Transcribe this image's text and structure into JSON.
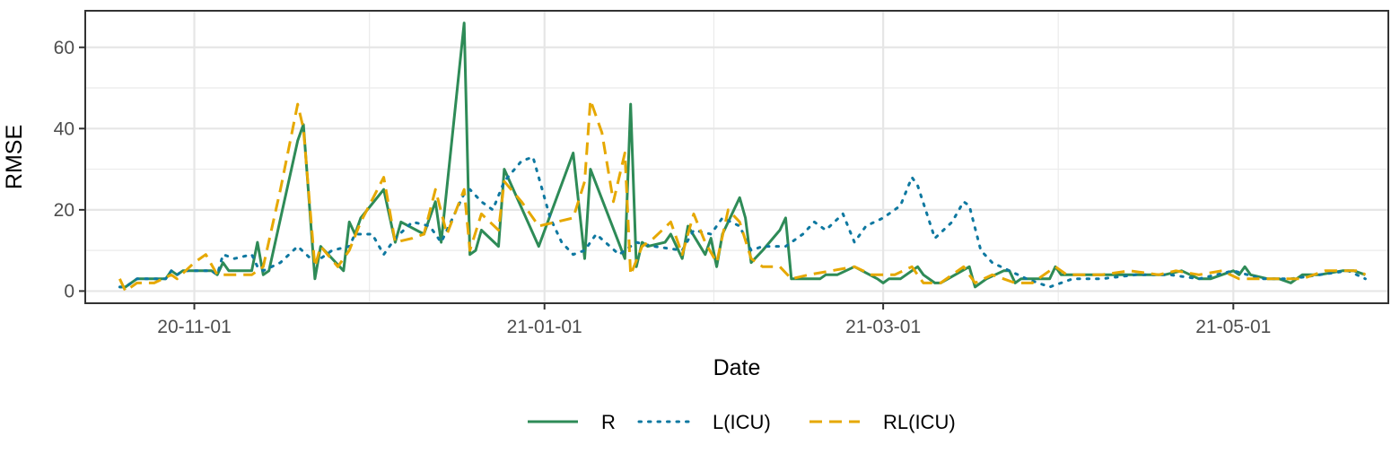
{
  "chart_data": {
    "type": "line",
    "title": "",
    "xlabel": "Date",
    "ylabel": "RMSE",
    "x_tick_labels": [
      "20-11-01",
      "21-01-01",
      "21-03-01",
      "21-05-01"
    ],
    "x_ticks": [
      "2020-11-01",
      "2021-01-01",
      "2021-03-01",
      "2021-05-01"
    ],
    "y_ticks": [
      0,
      20,
      40,
      60
    ],
    "y_tick_labels": [
      "0",
      "20",
      "40",
      "60"
    ],
    "xlim": [
      "2020-10-13",
      "2021-05-28"
    ],
    "ylim": [
      -3,
      69
    ],
    "grid": true,
    "legend_position": "bottom",
    "series": [
      {
        "name": "R",
        "color": "#2e8b57",
        "dash": "solid",
        "points": [
          [
            "2020-10-19",
            1
          ],
          [
            "2020-10-20",
            1
          ],
          [
            "2020-10-22",
            3
          ],
          [
            "2020-10-25",
            3
          ],
          [
            "2020-10-27",
            3
          ],
          [
            "2020-10-28",
            5
          ],
          [
            "2020-10-29",
            4
          ],
          [
            "2020-10-30",
            5
          ],
          [
            "2020-11-02",
            5
          ],
          [
            "2020-11-04",
            5
          ],
          [
            "2020-11-05",
            4
          ],
          [
            "2020-11-06",
            7
          ],
          [
            "2020-11-07",
            5
          ],
          [
            "2020-11-11",
            5
          ],
          [
            "2020-11-12",
            12
          ],
          [
            "2020-11-13",
            4
          ],
          [
            "2020-11-14",
            5
          ],
          [
            "2020-11-19",
            37
          ],
          [
            "2020-11-20",
            41
          ],
          [
            "2020-11-22",
            3
          ],
          [
            "2020-11-23",
            11
          ],
          [
            "2020-11-27",
            5
          ],
          [
            "2020-11-28",
            17
          ],
          [
            "2020-11-29",
            14
          ],
          [
            "2020-11-30",
            18
          ],
          [
            "2020-12-04",
            25
          ],
          [
            "2020-12-06",
            12
          ],
          [
            "2020-12-07",
            17
          ],
          [
            "2020-12-11",
            14
          ],
          [
            "2020-12-13",
            22
          ],
          [
            "2020-12-14",
            12
          ],
          [
            "2020-12-18",
            66
          ],
          [
            "2020-12-19",
            9
          ],
          [
            "2020-12-20",
            10
          ],
          [
            "2020-12-21",
            15
          ],
          [
            "2020-12-24",
            11
          ],
          [
            "2020-12-25",
            30
          ],
          [
            "2020-12-31",
            11
          ],
          [
            "2021-01-06",
            34
          ],
          [
            "2021-01-08",
            8
          ],
          [
            "2021-01-09",
            30
          ],
          [
            "2021-01-15",
            8
          ],
          [
            "2021-01-16",
            46
          ],
          [
            "2021-01-17",
            6
          ],
          [
            "2021-01-18",
            12
          ],
          [
            "2021-01-19",
            11
          ],
          [
            "2021-01-22",
            12
          ],
          [
            "2021-01-23",
            14
          ],
          [
            "2021-01-25",
            8
          ],
          [
            "2021-01-26",
            16
          ],
          [
            "2021-01-29",
            9
          ],
          [
            "2021-01-30",
            13
          ],
          [
            "2021-01-31",
            6
          ],
          [
            "2021-02-01",
            14
          ],
          [
            "2021-02-03",
            20
          ],
          [
            "2021-02-04",
            23
          ],
          [
            "2021-02-05",
            18
          ],
          [
            "2021-02-06",
            7
          ],
          [
            "2021-02-08",
            10
          ],
          [
            "2021-02-11",
            15
          ],
          [
            "2021-02-12",
            18
          ],
          [
            "2021-02-13",
            3
          ],
          [
            "2021-02-15",
            3
          ],
          [
            "2021-02-18",
            3
          ],
          [
            "2021-02-19",
            4
          ],
          [
            "2021-02-21",
            4
          ],
          [
            "2021-02-24",
            6
          ],
          [
            "2021-02-28",
            3
          ],
          [
            "2021-03-01",
            2
          ],
          [
            "2021-03-02",
            3
          ],
          [
            "2021-03-04",
            3
          ],
          [
            "2021-03-07",
            6
          ],
          [
            "2021-03-08",
            4
          ],
          [
            "2021-03-10",
            2
          ],
          [
            "2021-03-11",
            2
          ],
          [
            "2021-03-16",
            6
          ],
          [
            "2021-03-17",
            1
          ],
          [
            "2021-03-19",
            3
          ],
          [
            "2021-03-22",
            5
          ],
          [
            "2021-03-23",
            5
          ],
          [
            "2021-03-24",
            2
          ],
          [
            "2021-03-25",
            3
          ],
          [
            "2021-03-27",
            3
          ],
          [
            "2021-03-30",
            3
          ],
          [
            "2021-03-31",
            6
          ],
          [
            "2021-04-01",
            4
          ],
          [
            "2021-04-07",
            4
          ],
          [
            "2021-04-11",
            4
          ],
          [
            "2021-04-16",
            4
          ],
          [
            "2021-04-19",
            4
          ],
          [
            "2021-04-22",
            5
          ],
          [
            "2021-04-25",
            3
          ],
          [
            "2021-04-27",
            3
          ],
          [
            "2021-05-01",
            5
          ],
          [
            "2021-05-02",
            4
          ],
          [
            "2021-05-03",
            6
          ],
          [
            "2021-05-04",
            4
          ],
          [
            "2021-05-07",
            3
          ],
          [
            "2021-05-09",
            3
          ],
          [
            "2021-05-11",
            2
          ],
          [
            "2021-05-13",
            4
          ],
          [
            "2021-05-16",
            4
          ],
          [
            "2021-05-20",
            5
          ],
          [
            "2021-05-22",
            5
          ],
          [
            "2021-05-24",
            4
          ]
        ]
      },
      {
        "name": "L(ICU)",
        "color": "#0e78a0",
        "dash": "dotted",
        "points": [
          [
            "2020-10-19",
            1
          ],
          [
            "2020-10-20",
            1
          ],
          [
            "2020-10-22",
            3
          ],
          [
            "2020-10-25",
            3
          ],
          [
            "2020-10-27",
            3
          ],
          [
            "2020-10-28",
            5
          ],
          [
            "2020-10-29",
            4
          ],
          [
            "2020-10-30",
            5
          ],
          [
            "2020-11-02",
            5
          ],
          [
            "2020-11-04",
            5
          ],
          [
            "2020-11-05",
            4
          ],
          [
            "2020-11-06",
            9
          ],
          [
            "2020-11-08",
            8
          ],
          [
            "2020-11-11",
            9
          ],
          [
            "2020-11-12",
            6
          ],
          [
            "2020-11-13",
            5
          ],
          [
            "2020-11-16",
            7
          ],
          [
            "2020-11-19",
            11
          ],
          [
            "2020-11-22",
            7
          ],
          [
            "2020-11-25",
            10
          ],
          [
            "2020-11-28",
            11
          ],
          [
            "2020-11-29",
            14
          ],
          [
            "2020-12-02",
            14
          ],
          [
            "2020-12-04",
            9
          ],
          [
            "2020-12-06",
            13
          ],
          [
            "2020-12-09",
            17
          ],
          [
            "2020-12-12",
            16
          ],
          [
            "2020-12-14",
            12
          ],
          [
            "2020-12-18",
            24
          ],
          [
            "2020-12-19",
            25
          ],
          [
            "2020-12-21",
            22
          ],
          [
            "2020-12-23",
            20
          ],
          [
            "2020-12-25",
            27
          ],
          [
            "2020-12-28",
            32
          ],
          [
            "2020-12-30",
            33
          ],
          [
            "2021-01-02",
            18
          ],
          [
            "2021-01-04",
            12
          ],
          [
            "2021-01-06",
            9
          ],
          [
            "2021-01-08",
            10
          ],
          [
            "2021-01-10",
            14
          ],
          [
            "2021-01-14",
            9
          ],
          [
            "2021-01-17",
            12
          ],
          [
            "2021-01-20",
            11
          ],
          [
            "2021-01-25",
            10
          ],
          [
            "2021-01-27",
            15
          ],
          [
            "2021-01-30",
            14
          ],
          [
            "2021-02-01",
            18
          ],
          [
            "2021-02-04",
            16
          ],
          [
            "2021-02-06",
            10
          ],
          [
            "2021-02-08",
            11
          ],
          [
            "2021-02-12",
            11
          ],
          [
            "2021-02-15",
            14
          ],
          [
            "2021-02-17",
            17
          ],
          [
            "2021-02-19",
            15
          ],
          [
            "2021-02-22",
            19
          ],
          [
            "2021-02-24",
            12
          ],
          [
            "2021-02-26",
            16
          ],
          [
            "2021-03-01",
            18
          ],
          [
            "2021-03-04",
            21
          ],
          [
            "2021-03-06",
            28
          ],
          [
            "2021-03-07",
            26
          ],
          [
            "2021-03-10",
            13
          ],
          [
            "2021-03-13",
            17
          ],
          [
            "2021-03-15",
            22
          ],
          [
            "2021-03-16",
            21
          ],
          [
            "2021-03-18",
            10
          ],
          [
            "2021-03-20",
            7
          ],
          [
            "2021-03-23",
            5
          ],
          [
            "2021-03-26",
            3
          ],
          [
            "2021-03-30",
            1
          ],
          [
            "2021-04-03",
            3
          ],
          [
            "2021-04-08",
            3
          ],
          [
            "2021-04-14",
            4
          ],
          [
            "2021-04-20",
            4
          ],
          [
            "2021-04-25",
            3
          ],
          [
            "2021-05-01",
            5
          ],
          [
            "2021-05-06",
            3
          ],
          [
            "2021-05-11",
            3
          ],
          [
            "2021-05-16",
            4
          ],
          [
            "2021-05-21",
            5
          ],
          [
            "2021-05-24",
            3
          ]
        ]
      },
      {
        "name": "RL(ICU)",
        "color": "#e6a800",
        "dash": "dashed",
        "points": [
          [
            "2020-10-19",
            3
          ],
          [
            "2020-10-20",
            0
          ],
          [
            "2020-10-22",
            2
          ],
          [
            "2020-10-25",
            2
          ],
          [
            "2020-10-28",
            4
          ],
          [
            "2020-10-29",
            3
          ],
          [
            "2020-11-01",
            7
          ],
          [
            "2020-11-03",
            9
          ],
          [
            "2020-11-05",
            4
          ],
          [
            "2020-11-07",
            4
          ],
          [
            "2020-11-11",
            4
          ],
          [
            "2020-11-13",
            6
          ],
          [
            "2020-11-16",
            25
          ],
          [
            "2020-11-19",
            46
          ],
          [
            "2020-11-20",
            40
          ],
          [
            "2020-11-22",
            6
          ],
          [
            "2020-11-23",
            11
          ],
          [
            "2020-11-26",
            6
          ],
          [
            "2020-11-28",
            10
          ],
          [
            "2020-11-30",
            17
          ],
          [
            "2020-12-04",
            28
          ],
          [
            "2020-12-06",
            12
          ],
          [
            "2020-12-09",
            13
          ],
          [
            "2020-12-11",
            14
          ],
          [
            "2020-12-13",
            25
          ],
          [
            "2020-12-15",
            14
          ],
          [
            "2020-12-18",
            25
          ],
          [
            "2020-12-19",
            10
          ],
          [
            "2020-12-21",
            19
          ],
          [
            "2020-12-24",
            15
          ],
          [
            "2020-12-25",
            27
          ],
          [
            "2020-12-28",
            22
          ],
          [
            "2020-12-31",
            16
          ],
          [
            "2021-01-06",
            18
          ],
          [
            "2021-01-08",
            27
          ],
          [
            "2021-01-09",
            47
          ],
          [
            "2021-01-11",
            39
          ],
          [
            "2021-01-13",
            22
          ],
          [
            "2021-01-15",
            34
          ],
          [
            "2021-01-16",
            4
          ],
          [
            "2021-01-18",
            11
          ],
          [
            "2021-01-20",
            13
          ],
          [
            "2021-01-23",
            17
          ],
          [
            "2021-01-25",
            9
          ],
          [
            "2021-01-27",
            19
          ],
          [
            "2021-01-29",
            12
          ],
          [
            "2021-01-31",
            7
          ],
          [
            "2021-02-02",
            20
          ],
          [
            "2021-02-04",
            17
          ],
          [
            "2021-02-06",
            8
          ],
          [
            "2021-02-08",
            6
          ],
          [
            "2021-02-11",
            6
          ],
          [
            "2021-02-13",
            3
          ],
          [
            "2021-02-16",
            4
          ],
          [
            "2021-02-20",
            5
          ],
          [
            "2021-02-24",
            6
          ],
          [
            "2021-02-27",
            4
          ],
          [
            "2021-03-03",
            4
          ],
          [
            "2021-03-06",
            6
          ],
          [
            "2021-03-08",
            2
          ],
          [
            "2021-03-11",
            2
          ],
          [
            "2021-03-15",
            6
          ],
          [
            "2021-03-17",
            2
          ],
          [
            "2021-03-20",
            4
          ],
          [
            "2021-03-24",
            2
          ],
          [
            "2021-03-27",
            2
          ],
          [
            "2021-03-31",
            6
          ],
          [
            "2021-04-02",
            4
          ],
          [
            "2021-04-08",
            4
          ],
          [
            "2021-04-13",
            5
          ],
          [
            "2021-04-18",
            4
          ],
          [
            "2021-04-21",
            5
          ],
          [
            "2021-04-25",
            4
          ],
          [
            "2021-04-29",
            5
          ],
          [
            "2021-05-02",
            3
          ],
          [
            "2021-05-06",
            3
          ],
          [
            "2021-05-10",
            3
          ],
          [
            "2021-05-13",
            3
          ],
          [
            "2021-05-17",
            5
          ],
          [
            "2021-05-21",
            5
          ],
          [
            "2021-05-23",
            5
          ],
          [
            "2021-05-24",
            4
          ]
        ]
      }
    ]
  }
}
